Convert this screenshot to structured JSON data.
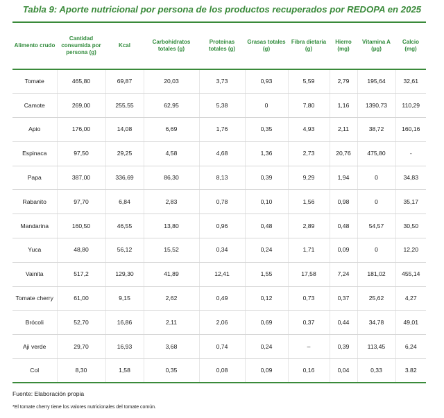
{
  "title": "Tabla 9: Aporte nutricional por persona de los productos recuperados por REDOPA en 2025",
  "columns": [
    "Alimento crudo",
    "Cantidad consumida por persona (g)",
    "Kcal",
    "Carbohidratos totales (g)",
    "Proteínas totales (g)",
    "Grasas totales (g)",
    "Fibra dietaria (g)",
    "Hierro (mg)",
    "Vitamina A (µg)",
    "Calcio (mg)"
  ],
  "rows": [
    [
      "Tomate",
      "465,80",
      "69,87",
      "20,03",
      "3,73",
      "0,93",
      "5,59",
      "2,79",
      "195,64",
      "32,61"
    ],
    [
      "Camote",
      "269,00",
      "255,55",
      "62,95",
      "5,38",
      "0",
      "7,80",
      "1,16",
      "1390,73",
      "110,29"
    ],
    [
      "Apio",
      "176,00",
      "14,08",
      "6,69",
      "1,76",
      "0,35",
      "4,93",
      "2,11",
      "38,72",
      "160,16"
    ],
    [
      "Espinaca",
      "97,50",
      "29,25",
      "4,58",
      "4,68",
      "1,36",
      "2,73",
      "20,76",
      "475,80",
      "-"
    ],
    [
      "Papa",
      "387,00",
      "336,69",
      "86,30",
      "8,13",
      "0,39",
      "9,29",
      "1,94",
      "0",
      "34,83"
    ],
    [
      "Rabanito",
      "97,70",
      "6,84",
      "2,83",
      "0,78",
      "0,10",
      "1,56",
      "0,98",
      "0",
      "35,17"
    ],
    [
      "Mandarina",
      "160,50",
      "46,55",
      "13,80",
      "0,96",
      "0,48",
      "2,89",
      "0,48",
      "54,57",
      "30,50"
    ],
    [
      "Yuca",
      "48,80",
      "56,12",
      "15,52",
      "0,34",
      "0,24",
      "1,71",
      "0,09",
      "0",
      "12,20"
    ],
    [
      "Vainita",
      "517,2",
      "129,30",
      "41,89",
      "12,41",
      "1,55",
      "17,58",
      "7,24",
      "181,02",
      "455,14"
    ],
    [
      "Tomate cherry",
      "61,00",
      "9,15",
      "2,62",
      "0,49",
      "0,12",
      "0,73",
      "0,37",
      "25,62",
      "4,27"
    ],
    [
      "Brócoli",
      "52,70",
      "16,86",
      "2,11",
      "2,06",
      "0,69",
      "0,37",
      "0,44",
      "34,78",
      "49,01"
    ],
    [
      "Aji verde",
      "29,70",
      "16,93",
      "3,68",
      "0,74",
      "0,24",
      "–",
      "0,39",
      "113,45",
      "6,24"
    ],
    [
      "Col",
      "8,30",
      "1,58",
      "0,35",
      "0,08",
      "0,09",
      "0,16",
      "0,04",
      "0,33",
      "3.82"
    ]
  ],
  "source": "Fuente: Elaboración propia",
  "footnote": "*El tomate cherry tiene los valores nutricionales del tomate común."
}
